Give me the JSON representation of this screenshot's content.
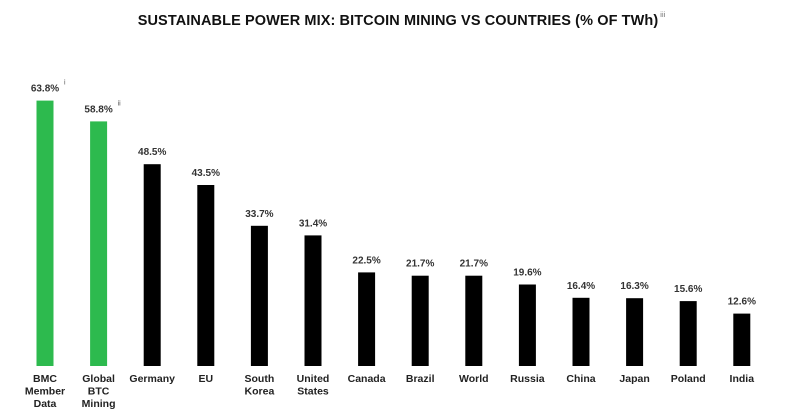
{
  "chart_data": {
    "type": "bar",
    "title": "SUSTAINABLE POWER MIX: BITCOIN MINING VS COUNTRIES (% OF TWh)",
    "title_note": "iii",
    "xlabel": "",
    "ylabel": "",
    "ylim": [
      0,
      65
    ],
    "grid": false,
    "categories": [
      "BMC Member Data",
      "Global BTC Mining",
      "Germany",
      "EU",
      "South Korea",
      "United States",
      "Canada",
      "Brazil",
      "World",
      "Russia",
      "China",
      "Japan",
      "Poland",
      "India"
    ],
    "category_lines": [
      [
        "BMC",
        "Member",
        "Data"
      ],
      [
        "Global",
        "BTC",
        "Mining"
      ],
      [
        "Germany"
      ],
      [
        "EU"
      ],
      [
        "South",
        "Korea"
      ],
      [
        "United",
        "States"
      ],
      [
        "Canada"
      ],
      [
        "Brazil"
      ],
      [
        "World"
      ],
      [
        "Russia"
      ],
      [
        "China"
      ],
      [
        "Japan"
      ],
      [
        "Poland"
      ],
      [
        "India"
      ]
    ],
    "values": [
      63.8,
      58.8,
      48.5,
      43.5,
      33.7,
      31.4,
      22.5,
      21.7,
      21.7,
      19.6,
      16.4,
      16.3,
      15.6,
      12.6
    ],
    "value_labels": [
      "63.8%",
      "58.8%",
      "48.5%",
      "43.5%",
      "33.7%",
      "31.4%",
      "22.5%",
      "21.7%",
      "21.7%",
      "19.6%",
      "16.4%",
      "16.3%",
      "15.6%",
      "12.6%"
    ],
    "notes": [
      "i",
      "ii",
      "",
      "",
      "",
      "",
      "",
      "",
      "",
      "",
      "",
      "",
      "",
      ""
    ],
    "highlight_indices": [
      0,
      1
    ],
    "colors": {
      "highlight": "#2dba4e",
      "default": "#000000"
    }
  }
}
